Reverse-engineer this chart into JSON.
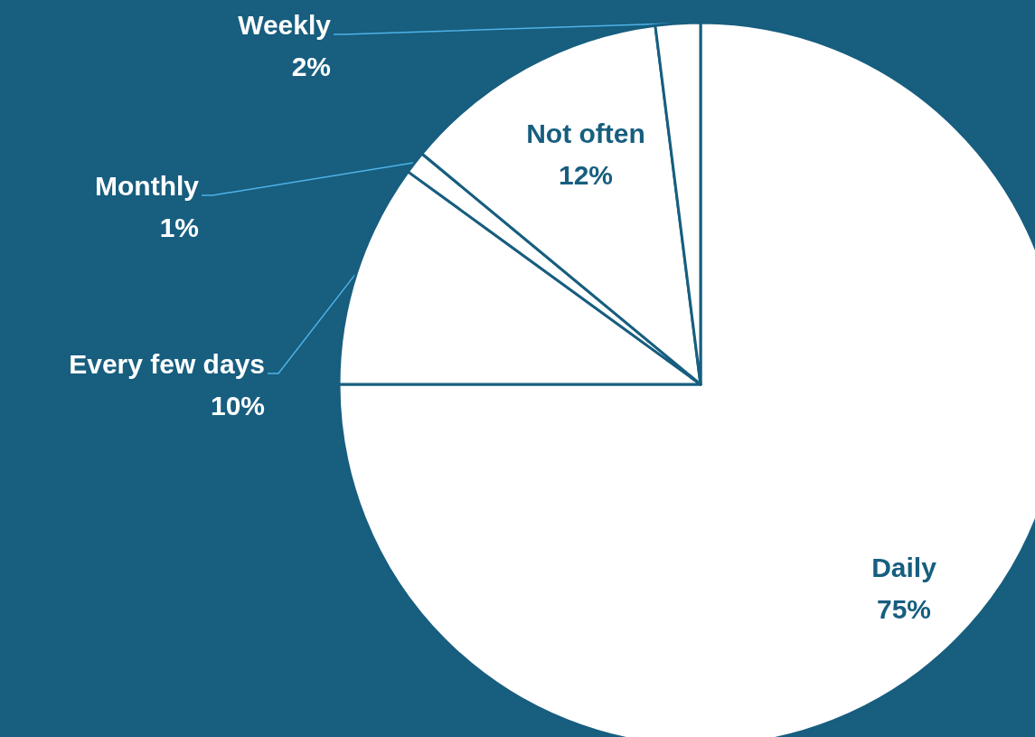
{
  "chart_data": {
    "type": "pie",
    "categories": [
      "Daily",
      "Every few days",
      "Monthly",
      "Not often",
      "Weekly"
    ],
    "values": [
      75,
      10,
      1,
      12,
      2
    ],
    "value_labels": [
      "75%",
      "10%",
      "1%",
      "12%",
      "2%"
    ],
    "colors": [
      "#ffffff",
      "#ffffff",
      "#ffffff",
      "#ffffff",
      "#ffffff"
    ],
    "legend": false
  }
}
